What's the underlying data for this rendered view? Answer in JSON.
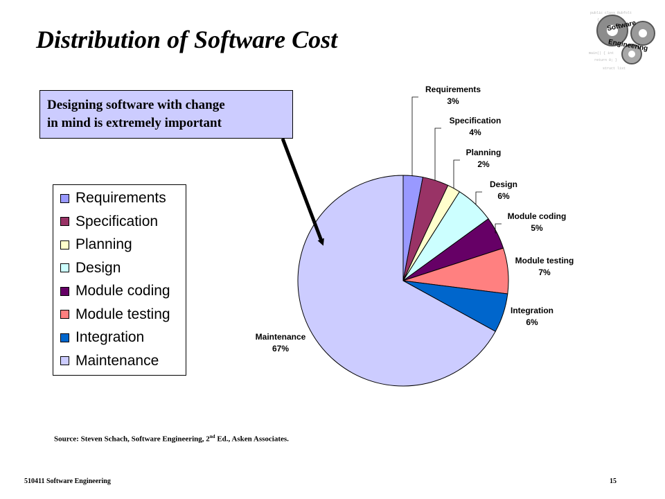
{
  "slide": {
    "title": "Distribution of Software Cost",
    "callout": {
      "line1": "Designing software with change",
      "line2": "in mind is extremely important"
    },
    "source": {
      "before": "Source: Steven Schach, Software Engineering, 2",
      "superscript": "nd",
      "after": " Ed., Asken Associates."
    },
    "footer": {
      "course": "510411 Software Engineering",
      "page": "15"
    },
    "logo": {
      "word1": "Software",
      "word2": "Engineering",
      "icon": "gears-icon"
    }
  },
  "chart_data": {
    "type": "pie",
    "title": "",
    "slices": [
      {
        "label": "Requirements",
        "value": 3,
        "display": "3%",
        "color": "#9999ff"
      },
      {
        "label": "Specification",
        "value": 4,
        "display": "4%",
        "color": "#993366"
      },
      {
        "label": "Planning",
        "value": 2,
        "display": "2%",
        "color": "#ffffcc"
      },
      {
        "label": "Design",
        "value": 6,
        "display": "6%",
        "color": "#ccffff"
      },
      {
        "label": "Module coding",
        "value": 5,
        "display": "5%",
        "color": "#660066"
      },
      {
        "label": "Module testing",
        "value": 7,
        "display": "7%",
        "color": "#ff8080"
      },
      {
        "label": "Integration",
        "value": 6,
        "display": "6%",
        "color": "#0066cc"
      },
      {
        "label": "Maintenance",
        "value": 67,
        "display": "67%",
        "color": "#ccccff"
      }
    ],
    "legend_placement": "left"
  }
}
